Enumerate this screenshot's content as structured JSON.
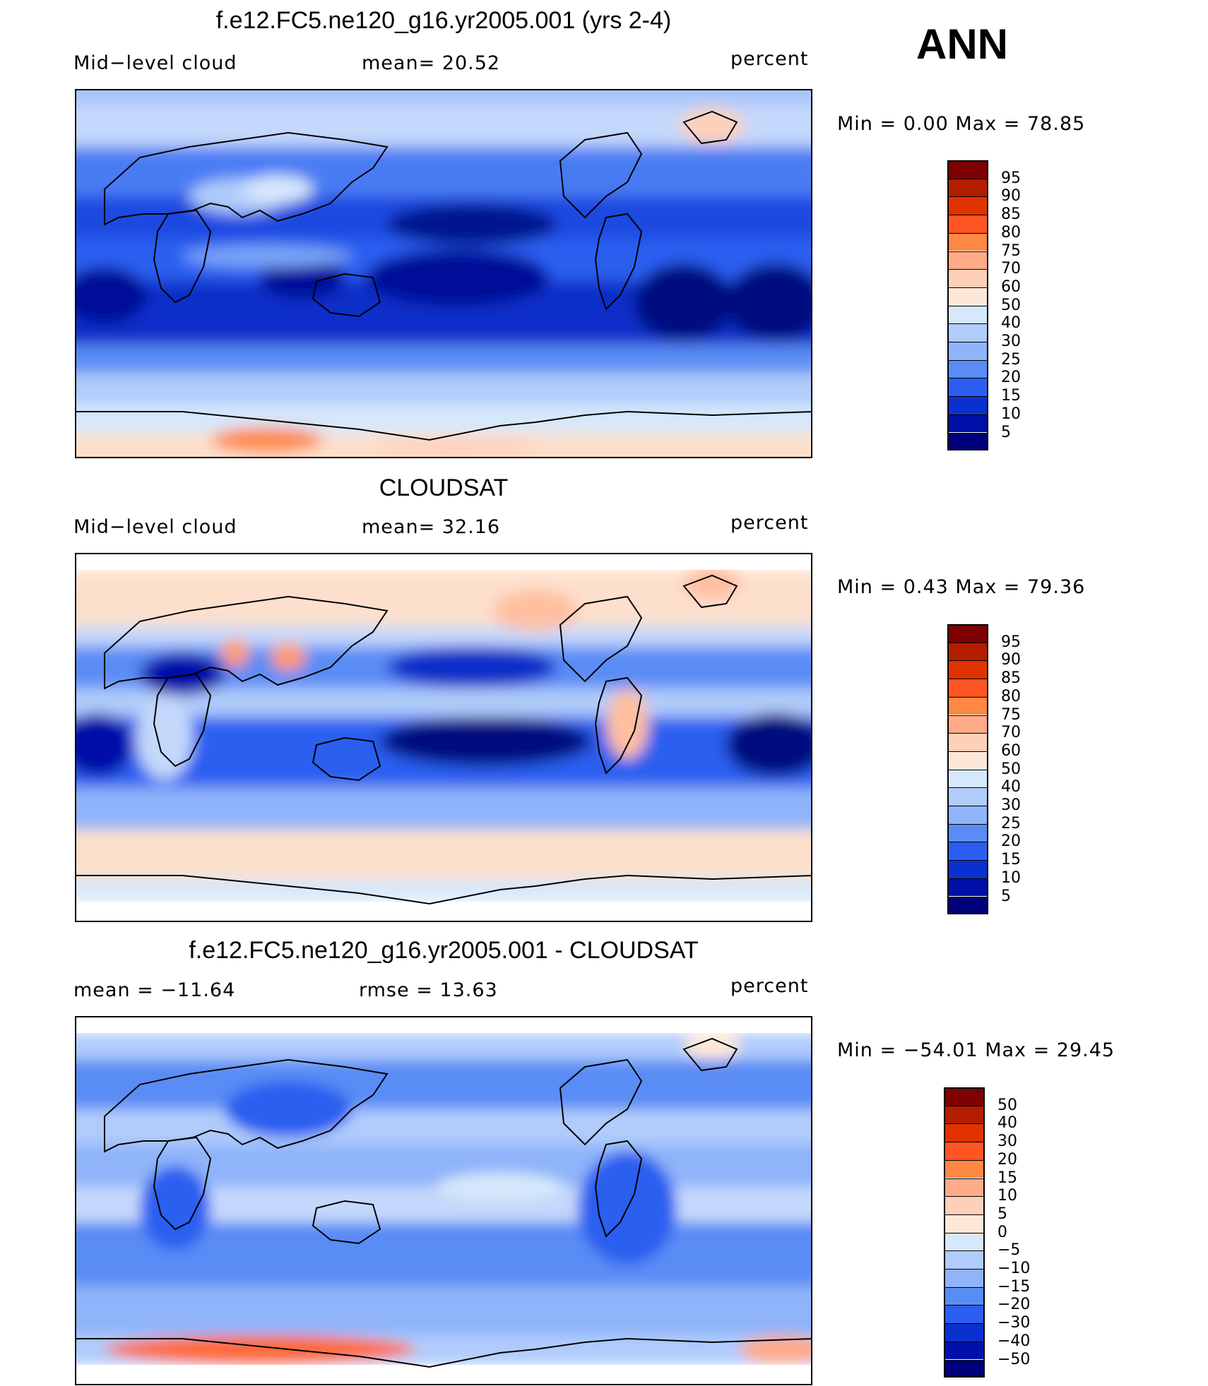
{
  "season": "ANN",
  "panels": [
    {
      "id": "model",
      "title": "f.e12.FC5.ne120_g16.yr2005.001 (yrs 2-4)",
      "left_label": "Mid−level cloud",
      "center_label": "mean=   20.52",
      "right_label": "percent",
      "minmax": "Min  =     0.00  Max  =    78.85",
      "colorbar_ticks": [
        "95",
        "90",
        "85",
        "80",
        "75",
        "70",
        "60",
        "50",
        "40",
        "30",
        "25",
        "20",
        "15",
        "10",
        "5"
      ]
    },
    {
      "id": "obs",
      "title": "CLOUDSAT",
      "left_label": "Mid−level cloud",
      "center_label": "mean=   32.16",
      "right_label": "percent",
      "minmax": "Min  =     0.43  Max  =    79.36",
      "colorbar_ticks": [
        "95",
        "90",
        "85",
        "80",
        "75",
        "70",
        "60",
        "50",
        "40",
        "30",
        "25",
        "20",
        "15",
        "10",
        "5"
      ]
    },
    {
      "id": "diff",
      "title": "f.e12.FC5.ne120_g16.yr2005.001 - CLOUDSAT",
      "left_label": "mean  =  −11.64",
      "center_label": "rmse  =    13.63",
      "right_label": "percent",
      "minmax": "Min  =  −54.01  Max  =    29.45",
      "colorbar_ticks": [
        "50",
        "40",
        "30",
        "20",
        "15",
        "10",
        "5",
        "0",
        "−5",
        "−10",
        "−15",
        "−20",
        "−30",
        "−40",
        "−50"
      ]
    }
  ],
  "colors": {
    "abs_scale": [
      "#7f0000",
      "#b31d00",
      "#e03300",
      "#ff5522",
      "#ff8844",
      "#ffaa88",
      "#ffd0b8",
      "#fde8d8",
      "#d6e8fb",
      "#b0ccfb",
      "#8fb4fa",
      "#5a8cf5",
      "#2b5ef0",
      "#0a30d0",
      "#0010a8",
      "#00007a"
    ],
    "diff_scale": [
      "#7f0000",
      "#b31d00",
      "#e03300",
      "#ff5522",
      "#ff8844",
      "#ffaa88",
      "#ffd0b8",
      "#fde8d8",
      "#d6e8fb",
      "#b0ccfb",
      "#8fb4fa",
      "#5a8cf5",
      "#2b5ef0",
      "#0a30d0",
      "#0010a8",
      "#00007a"
    ]
  }
}
